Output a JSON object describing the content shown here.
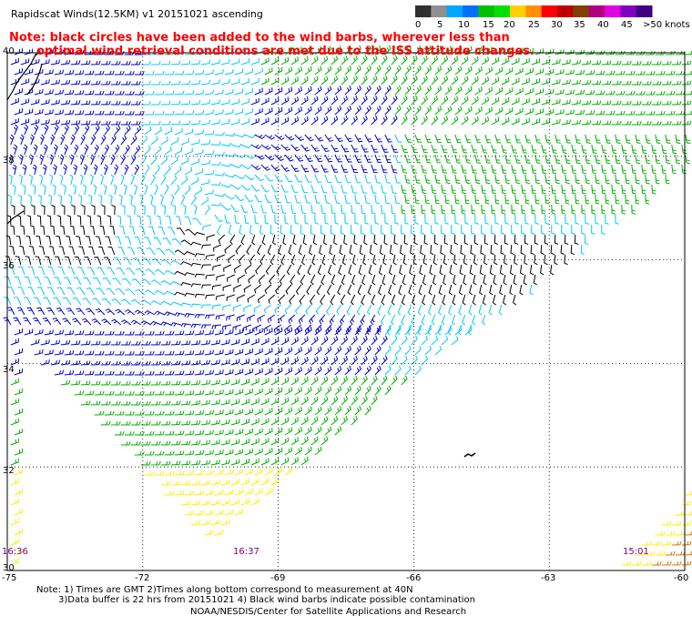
{
  "header": {
    "title": "Rapidscat Winds(12.5KM) v1 20151021 ascending",
    "note_line1": "Note: black circles have been added to the wind barbs, wherever less than",
    "note_line2": "optimal wind retrieval conditions are met due to the ISS attitude changes."
  },
  "legend": {
    "labels": [
      "0",
      "5",
      "10",
      "15",
      "20",
      "25",
      "30",
      "35",
      "40",
      "45",
      ">50 knots"
    ],
    "colors": [
      "#303030",
      "#909090",
      "#00a8ff",
      "#0070ff",
      "#00c000",
      "#00e000",
      "#ffd000",
      "#ff9000",
      "#ff0000",
      "#c00000",
      "#804000",
      "#b00080",
      "#e000e0",
      "#8000c0",
      "#400080"
    ]
  },
  "map": {
    "lat_labels": [
      "40",
      "38",
      "36",
      "34",
      "32",
      "30"
    ],
    "lon_labels": [
      "-75",
      "-72",
      "-69",
      "-66",
      "-63",
      "-60"
    ],
    "time_labels": [
      "16:36",
      "16:37",
      "15:01"
    ]
  },
  "footer": {
    "line1": "Note: 1) Times are GMT 2)Times along bottom correspond to measurement at 40N",
    "line2": "3)Data buffer is 22 hrs from 20151021 4) Black wind barbs indicate possible contamination",
    "line3": "NOAA/NESDIS/Center for Satellite Applications and Research"
  },
  "colors": {
    "speed_0_5": "#000000",
    "speed_5_10": "#00c8ff",
    "speed_10_15": "#0000c8",
    "speed_15_20": "#00b000",
    "speed_20_25": "#ffee00",
    "speed_25_35": "#e07000",
    "title_note": "#ff0000",
    "time_label": "#800080"
  }
}
